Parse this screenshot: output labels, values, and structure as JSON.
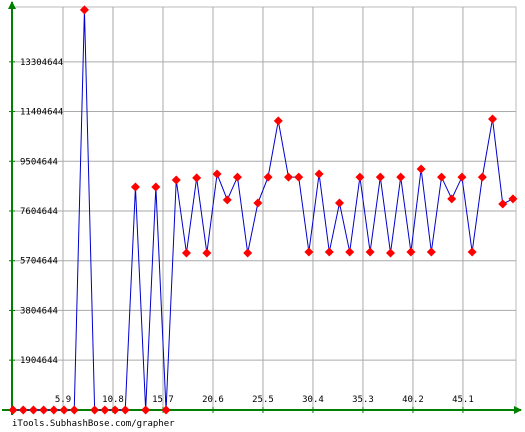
{
  "chart_data": {
    "type": "line",
    "x": [
      1,
      2,
      3,
      4,
      5,
      6,
      7,
      8,
      9,
      10,
      11,
      12,
      13,
      14,
      15,
      16,
      17,
      18,
      19,
      20,
      21,
      22,
      23,
      24,
      25,
      26,
      27,
      28,
      29,
      30,
      31,
      32,
      33,
      34,
      35,
      36,
      37,
      38,
      39,
      40,
      41,
      42,
      43,
      44,
      45,
      46,
      47,
      48,
      49,
      50
    ],
    "series": [
      {
        "color": "#0000cc",
        "marker_color": "#ff0000",
        "values": [
          0,
          0,
          0,
          0,
          0,
          0,
          0,
          15290000,
          0,
          0,
          0,
          0,
          8520000,
          0,
          8520000,
          0,
          8790000,
          6000000,
          8870000,
          6000000,
          9020000,
          8030000,
          8900000,
          6000000,
          7910000,
          8900000,
          11050000,
          8900000,
          8900000,
          6040000,
          9020000,
          6040000,
          7910000,
          6040000,
          8900000,
          6040000,
          8900000,
          6000000,
          8900000,
          6040000,
          9210000,
          6040000,
          8900000,
          8070000,
          8900000,
          6040000,
          8900000,
          11120000,
          7870000,
          8070000
        ]
      }
    ],
    "xlim": [
      0.9,
      50.3
    ],
    "ylim": [
      0,
      15400000
    ],
    "xticks": [
      5.9,
      10.8,
      15.7,
      20.6,
      25.5,
      30.4,
      35.3,
      40.2,
      45.1
    ],
    "yticks": [
      1904644,
      3804644,
      5704644,
      7604644,
      9504644,
      11404644,
      13304644
    ],
    "grid": true,
    "footer": "iTools.SubhashBose.com/grapher"
  }
}
